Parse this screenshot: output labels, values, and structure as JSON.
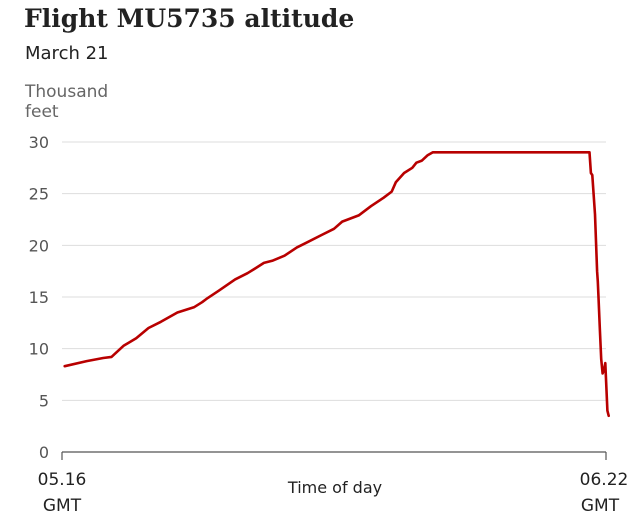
{
  "chart_data": {
    "type": "line",
    "title": "Flight MU5735 altitude",
    "subtitle": "March 21",
    "ylabel": "Thousand feet",
    "xlabel": "Time of day",
    "ylim": [
      0,
      30
    ],
    "yticks": [
      "0",
      "5",
      "10",
      "15",
      "20",
      "25",
      "30"
    ],
    "x_start_label": [
      "05.16",
      "GMT"
    ],
    "x_end_label": [
      "06.22",
      "GMT"
    ],
    "x_range": [
      "05:16",
      "06:22"
    ],
    "grid": true,
    "colors": {
      "line": "#b80000",
      "grid": "#dddddd",
      "axis": "#555555"
    },
    "series": [
      {
        "x": [
          "05:16:20",
          "05:19:00",
          "05:21:00",
          "05:22:00",
          "05:23:30",
          "05:25:00",
          "05:26:30",
          "05:28:00",
          "05:30:00",
          "05:32:00",
          "05:33:00",
          "05:33:30",
          "05:35:00",
          "05:37:00",
          "05:38:30",
          "05:39:30",
          "05:40:30",
          "05:41:30",
          "05:43:00",
          "05:44:30",
          "05:45:30",
          "05:47:30",
          "05:49:00",
          "05:50:00",
          "05:52:00",
          "05:53:30",
          "05:55:00",
          "05:56:00",
          "05:56:30",
          "05:57:30",
          "05:58:30",
          "05:59:00",
          "05:59:40",
          "06:00:20",
          "06:01:00",
          "06:02:00",
          "06:03:00",
          "06:03:20",
          "06:03:50",
          "06:04:30",
          "06:05:30",
          "06:06:30",
          "06:07:00",
          "06:10:00",
          "06:15:00",
          "06:20:00",
          "06:20:10",
          "06:20:20",
          "06:20:40",
          "06:20:55",
          "06:21:00",
          "06:21:05",
          "06:21:15",
          "06:21:25",
          "06:21:35",
          "06:21:45",
          "06:21:55",
          "06:22:10",
          "06:22:20"
        ],
        "y": [
          8.3,
          8.8,
          9.1,
          9.2,
          10.3,
          11.0,
          12.0,
          12.6,
          13.5,
          14.0,
          14.5,
          14.8,
          15.6,
          16.7,
          17.3,
          17.8,
          18.3,
          18.5,
          19.0,
          19.8,
          20.2,
          21.0,
          21.6,
          22.3,
          22.9,
          23.8,
          24.6,
          25.2,
          26.1,
          27.0,
          27.5,
          28.0,
          28.2,
          28.7,
          29.0,
          29.0,
          29.0,
          29.0,
          29.0,
          29.0,
          29.0,
          29.0,
          29.0,
          29.0,
          29.0,
          29.0,
          27.0,
          26.8,
          23.0,
          17.5,
          16.5,
          15.2,
          12.0,
          9.0,
          7.6,
          7.9,
          8.6,
          4.0,
          3.5
        ]
      }
    ]
  }
}
